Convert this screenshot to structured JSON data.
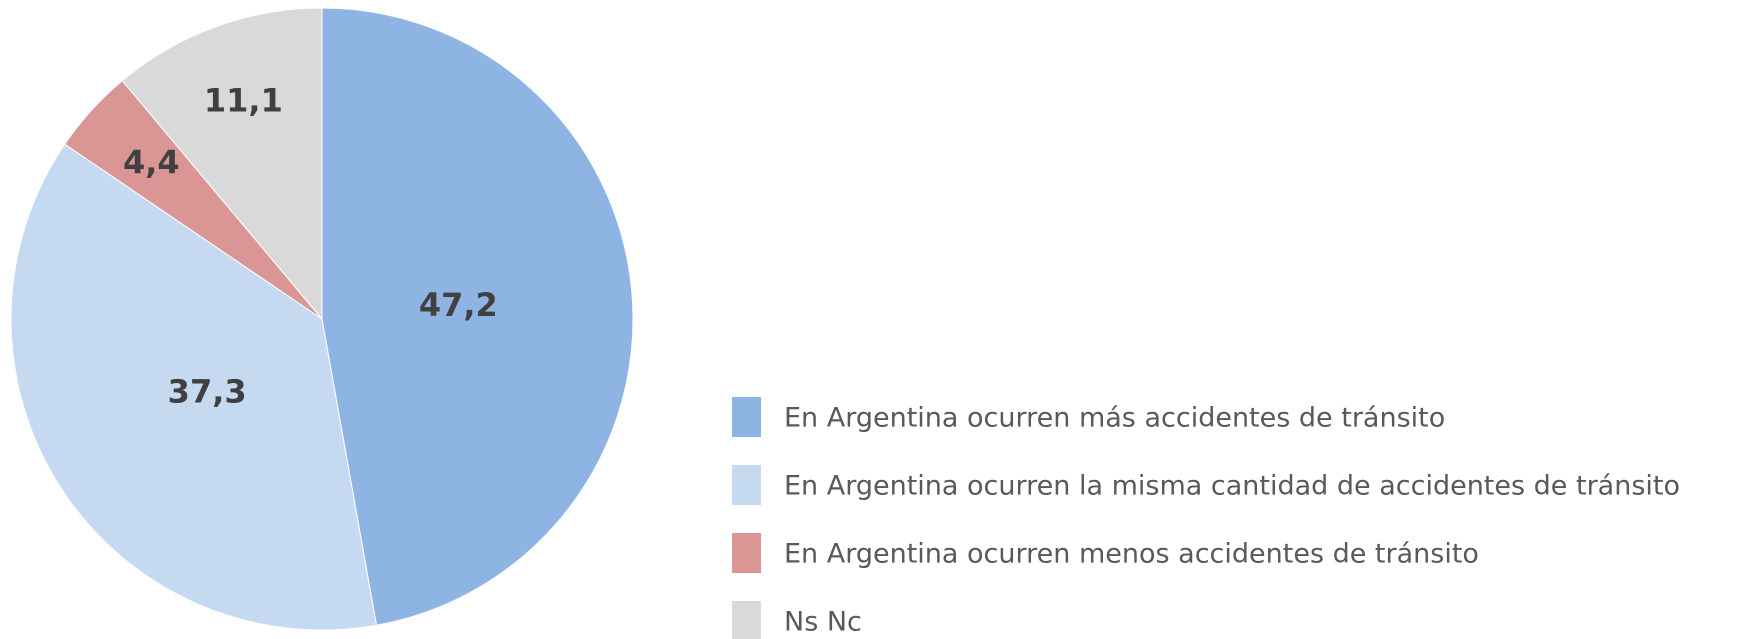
{
  "chart_data": {
    "type": "pie",
    "categories": [
      "En Argentina ocurren más accidentes de tránsito",
      "En Argentina ocurren la misma cantidad de accidentes de tránsito",
      "En Argentina ocurren menos accidentes de tránsito",
      "Ns Nc"
    ],
    "values": [
      47.2,
      37.3,
      4.4,
      11.1
    ],
    "value_labels": [
      "47,2",
      "37,3",
      "4,4",
      "11,1"
    ],
    "colors": [
      "#8eb4e3",
      "#c5d9f1",
      "#d99694",
      "#d9d9d9"
    ],
    "legend": "right"
  }
}
